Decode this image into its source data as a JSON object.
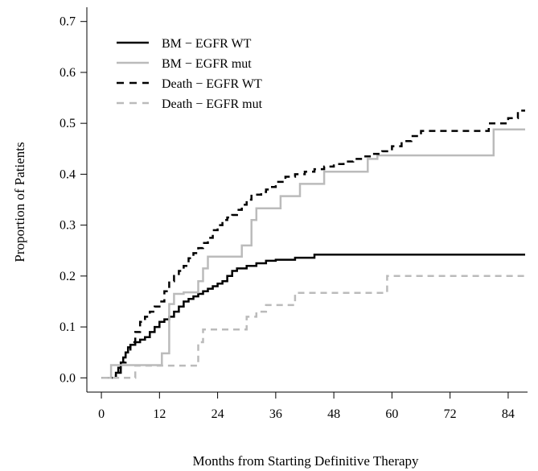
{
  "chart_data": {
    "type": "line",
    "xlabel": "Months from Starting Definitive Therapy",
    "ylabel": "Proportion of Patients",
    "xlim": [
      -3,
      88
    ],
    "ylim": [
      -0.028,
      0.728
    ],
    "xticks": [
      0,
      12,
      24,
      36,
      48,
      60,
      72,
      84
    ],
    "xtick_labels": [
      "0",
      "12",
      "24",
      "36",
      "48",
      "60",
      "72",
      "84"
    ],
    "yticks": [
      0.0,
      0.1,
      0.2,
      0.3,
      0.4,
      0.5,
      0.6,
      0.7
    ],
    "ytick_labels": [
      "0.0",
      "0.1",
      "0.2",
      "0.3",
      "0.4",
      "0.5",
      "0.6",
      "0.7"
    ],
    "grid": false,
    "legend_position": "top-left",
    "series": [
      {
        "name": "BM − EGFR WT",
        "color": "#000000",
        "dash": "solid",
        "x": [
          0,
          2.5,
          3,
          3.5,
          4,
          4.5,
          5,
          5.5,
          6,
          7,
          8,
          9,
          10,
          11,
          12,
          13,
          14,
          15,
          16,
          17,
          18,
          19,
          20,
          21,
          22,
          23,
          24,
          25,
          26,
          27,
          28,
          30,
          32,
          34,
          36,
          40,
          44,
          48,
          60,
          72,
          84,
          87.5
        ],
        "y": [
          0,
          0,
          0.01,
          0.02,
          0.03,
          0.04,
          0.05,
          0.06,
          0.065,
          0.07,
          0.075,
          0.08,
          0.09,
          0.1,
          0.11,
          0.115,
          0.12,
          0.13,
          0.14,
          0.15,
          0.155,
          0.16,
          0.165,
          0.17,
          0.175,
          0.18,
          0.185,
          0.19,
          0.2,
          0.21,
          0.215,
          0.22,
          0.225,
          0.23,
          0.232,
          0.236,
          0.242,
          0.242,
          0.242,
          0.242,
          0.242,
          0.242
        ]
      },
      {
        "name": "BM − EGFR mut",
        "color": "#bbbbbb",
        "dash": "solid",
        "x": [
          0,
          2,
          12.5,
          14,
          15,
          17,
          20,
          21,
          22,
          29,
          31,
          32,
          35,
          37,
          40,
          41,
          45,
          46,
          52,
          55,
          57,
          60,
          81,
          87.5
        ],
        "y": [
          0,
          0.025,
          0.048,
          0.145,
          0.165,
          0.168,
          0.19,
          0.215,
          0.238,
          0.26,
          0.31,
          0.333,
          0.333,
          0.357,
          0.357,
          0.381,
          0.381,
          0.405,
          0.405,
          0.43,
          0.437,
          0.437,
          0.488,
          0.488
        ]
      },
      {
        "name": "Death − EGFR WT",
        "color": "#000000",
        "dash": "dashed",
        "x": [
          0,
          3,
          4,
          5,
          6,
          7,
          8,
          9,
          10,
          11,
          12,
          13,
          14,
          15,
          16,
          17,
          18,
          19,
          20,
          21,
          22,
          23,
          24,
          25,
          26,
          27,
          28,
          29,
          30,
          31,
          32,
          33,
          34,
          35,
          36,
          38,
          40,
          42,
          44,
          46,
          48,
          50,
          52,
          54,
          56,
          58,
          60,
          62,
          64,
          66,
          72,
          80,
          84,
          86,
          87.5
        ],
        "y": [
          0,
          0.01,
          0.03,
          0.05,
          0.07,
          0.09,
          0.11,
          0.12,
          0.13,
          0.14,
          0.15,
          0.17,
          0.19,
          0.2,
          0.21,
          0.22,
          0.235,
          0.245,
          0.255,
          0.265,
          0.275,
          0.29,
          0.3,
          0.31,
          0.315,
          0.32,
          0.33,
          0.34,
          0.35,
          0.36,
          0.36,
          0.365,
          0.37,
          0.375,
          0.385,
          0.395,
          0.4,
          0.405,
          0.41,
          0.415,
          0.42,
          0.425,
          0.43,
          0.435,
          0.44,
          0.445,
          0.455,
          0.465,
          0.475,
          0.485,
          0.485,
          0.5,
          0.51,
          0.525,
          0.525
        ]
      },
      {
        "name": "Death − EGFR mut",
        "color": "#bbbbbb",
        "dash": "dashed",
        "x": [
          0,
          7,
          8,
          12,
          14,
          20,
          21,
          22,
          24,
          25,
          30,
          32,
          34,
          36,
          40,
          42,
          48,
          55,
          59,
          60,
          66,
          72,
          84,
          87.5
        ],
        "y": [
          0,
          0.024,
          0.024,
          0.024,
          0.024,
          0.07,
          0.095,
          0.095,
          0.095,
          0.095,
          0.12,
          0.13,
          0.143,
          0.143,
          0.167,
          0.167,
          0.167,
          0.167,
          0.2,
          0.2,
          0.2,
          0.2,
          0.2,
          0.2
        ]
      }
    ]
  }
}
